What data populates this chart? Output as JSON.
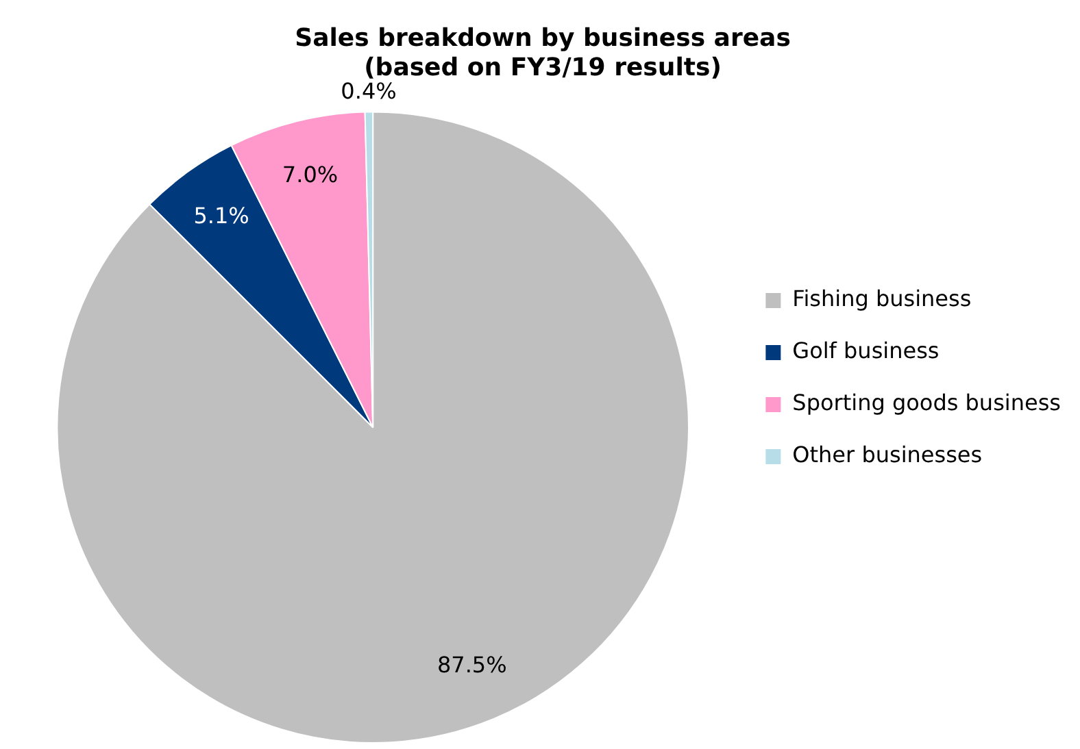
{
  "chart_data": {
    "type": "pie",
    "title": "Sales breakdown by business areas\n(based on FY3/19 results)",
    "categories": [
      "Fishing business",
      "Golf business",
      "Sporting goods business",
      "Other businesses"
    ],
    "values": [
      87.5,
      5.1,
      7.0,
      0.4
    ],
    "colors": [
      "#bfbfbf",
      "#003a7d",
      "#ff99cc",
      "#b7dee8"
    ],
    "value_labels": [
      "87.5%",
      "5.1%",
      "7.0%",
      "0.4%"
    ],
    "legend": "right"
  }
}
